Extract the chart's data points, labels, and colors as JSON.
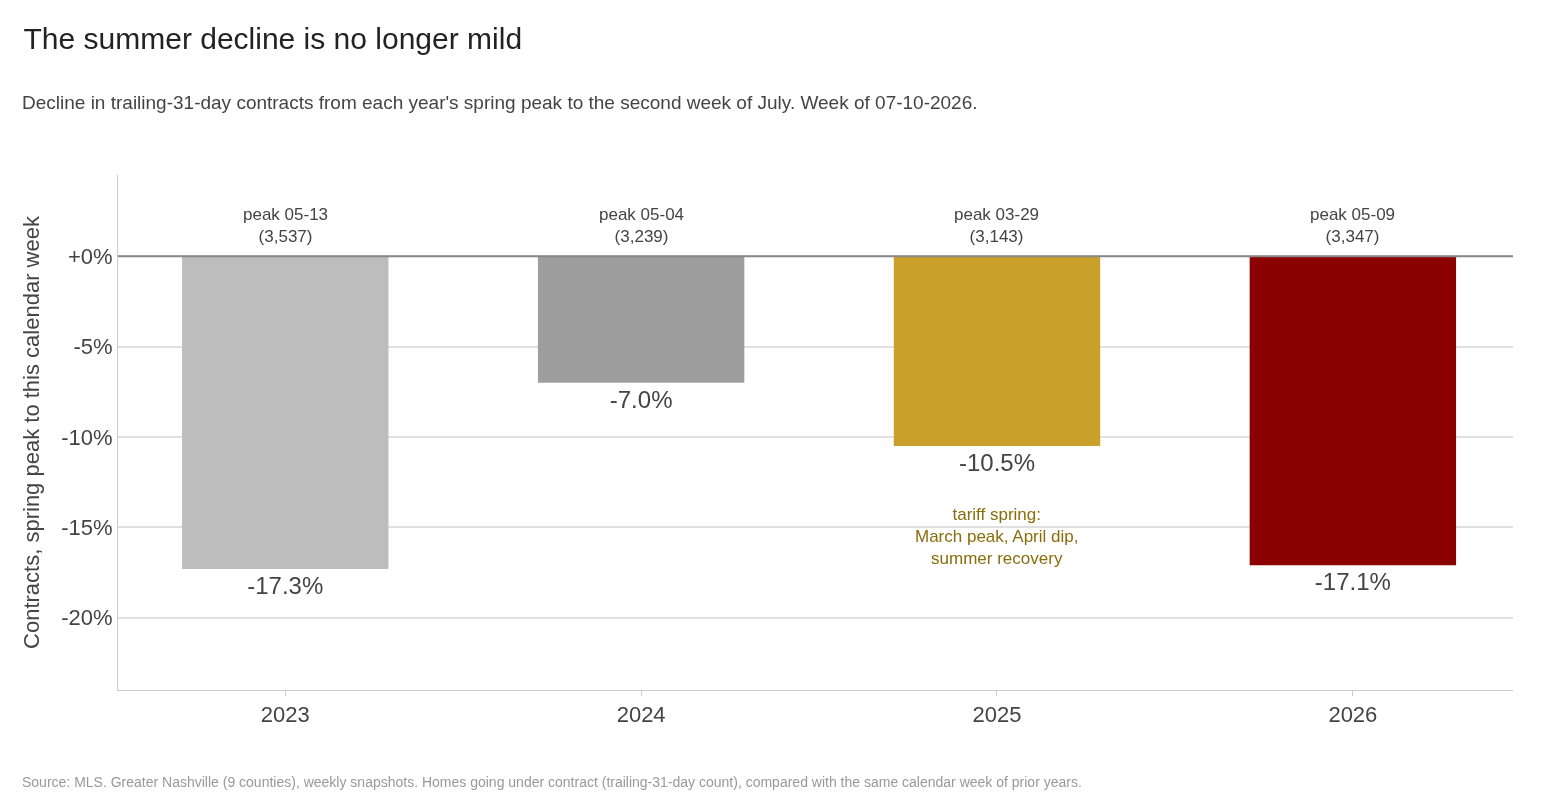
{
  "chart_data": {
    "type": "bar",
    "title": "The summer decline is no longer mild",
    "subtitle": "Decline in trailing-31-day contracts from each year's spring peak to the second week of July. Week of 07-10-2026.",
    "ylabel": "Contracts, spring peak to this calendar week",
    "categories": [
      "2023",
      "2024",
      "2025",
      "2026"
    ],
    "values": [
      -17.3,
      -7.0,
      -10.5,
      -17.1
    ],
    "colors": [
      "#bdbdbd",
      "#9e9e9e",
      "#c9a12a",
      "#8b0000"
    ],
    "value_labels": [
      "-17.3%",
      "-7.0%",
      "-10.5%",
      "-17.1%"
    ],
    "ylim": [
      -24,
      4.5
    ],
    "yticks": [
      {
        "value": 0,
        "label": "+0%"
      },
      {
        "value": -5,
        "label": "-5%"
      },
      {
        "value": -10,
        "label": "-10%"
      },
      {
        "value": -15,
        "label": "-15%"
      },
      {
        "value": -20,
        "label": "-20%"
      }
    ],
    "grid": "y",
    "ref_lines": [
      {
        "axis": "y",
        "value": 0,
        "color": "#888888"
      }
    ],
    "annotations": [
      {
        "text": "peak 05-13\n(3,537)",
        "x": "2023",
        "y": 0
      },
      {
        "text": "peak 05-04\n(3,239)",
        "x": "2024",
        "y": 0
      },
      {
        "text": "peak 03-29\n(3,143)",
        "x": "2025",
        "y": 0
      },
      {
        "text": "peak 05-09\n(3,347)",
        "x": "2026",
        "y": 0
      },
      "tariff spring:\nMarch peak, April dip,\nsummer recovery",
      "Source: MLS. Greater Nashville (9 counties), weekly snapshots. Homes going under contract (trailing-31-day count), compared with the same calendar week of prior years."
    ]
  }
}
